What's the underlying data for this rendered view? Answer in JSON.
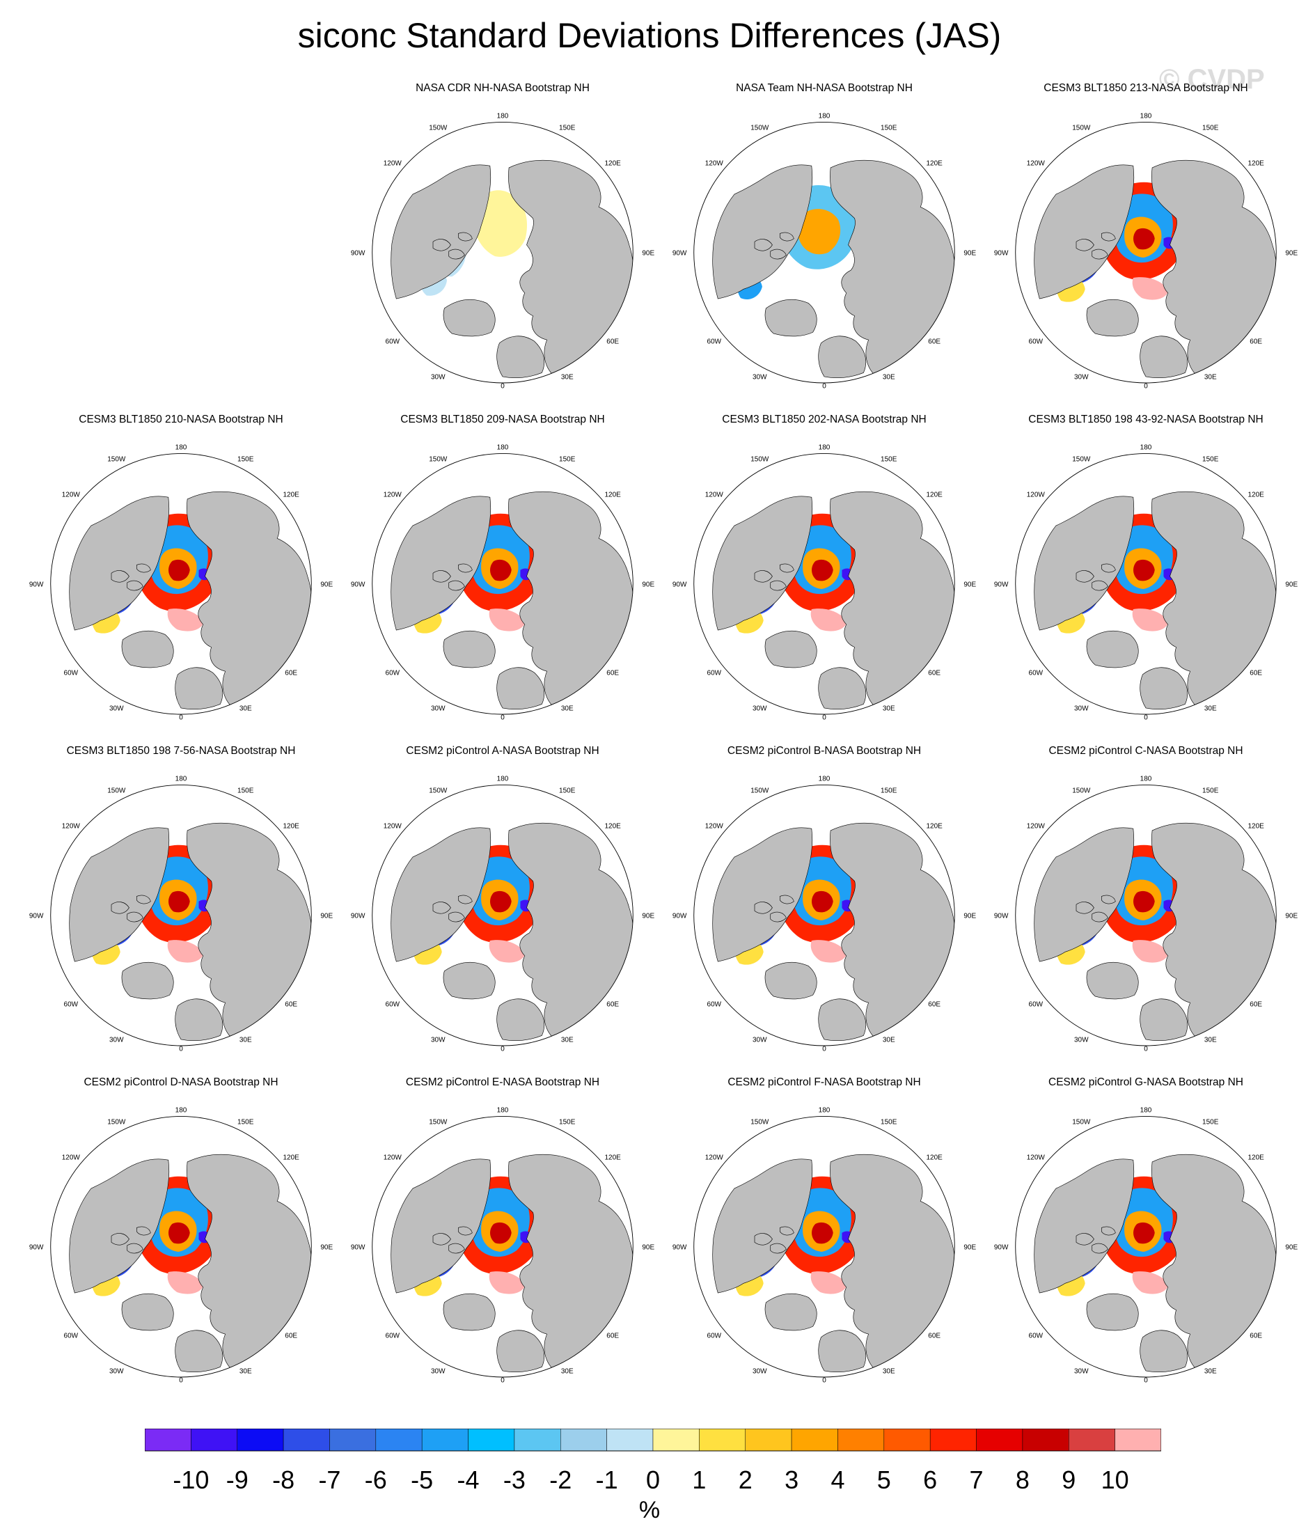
{
  "title": "siconc Standard Deviations Differences (JAS)",
  "watermark": "© CVDP",
  "panels": [
    {
      "title": "NASA CDR NH-NASA Bootstrap NH",
      "pattern": "cdr"
    },
    {
      "title": "NASA Team NH-NASA Bootstrap NH",
      "pattern": "team"
    },
    {
      "title": "CESM3 BLT1850 213-NASA Bootstrap NH",
      "pattern": "model"
    },
    {
      "title": "CESM3 BLT1850 210-NASA Bootstrap NH",
      "pattern": "model"
    },
    {
      "title": "CESM3 BLT1850 209-NASA Bootstrap NH",
      "pattern": "model"
    },
    {
      "title": "CESM3 BLT1850 202-NASA Bootstrap NH",
      "pattern": "model"
    },
    {
      "title": "CESM3 BLT1850 198 43-92-NASA Bootstrap NH",
      "pattern": "model"
    },
    {
      "title": "CESM3 BLT1850 198 7-56-NASA Bootstrap NH",
      "pattern": "model"
    },
    {
      "title": "CESM2 piControl A-NASA Bootstrap NH",
      "pattern": "model"
    },
    {
      "title": "CESM2 piControl B-NASA Bootstrap NH",
      "pattern": "model"
    },
    {
      "title": "CESM2 piControl C-NASA Bootstrap NH",
      "pattern": "model"
    },
    {
      "title": "CESM2 piControl D-NASA Bootstrap NH",
      "pattern": "model"
    },
    {
      "title": "CESM2 piControl E-NASA Bootstrap NH",
      "pattern": "model"
    },
    {
      "title": "CESM2 piControl F-NASA Bootstrap NH",
      "pattern": "model"
    },
    {
      "title": "CESM2 piControl G-NASA Bootstrap NH",
      "pattern": "model"
    }
  ],
  "map_labels": {
    "top": "180",
    "bottom": "0",
    "left": "90W",
    "right": "90E",
    "top_left_1": "150W",
    "top_right_1": "150E",
    "top_left_2": "120W",
    "top_right_2": "120E",
    "bottom_left_1": "60W",
    "bottom_right_1": "60E",
    "bottom_left_2": "30W",
    "bottom_right_2": "30E"
  },
  "colorbar": {
    "colors": [
      "#7b2bf5",
      "#3f12f5",
      "#0c0cf5",
      "#2e4ee8",
      "#3a6fe0",
      "#2b84f2",
      "#1ea0f5",
      "#00bfff",
      "#5cc6f2",
      "#9ccfec",
      "#bfe3f5",
      "#fff59a",
      "#ffe040",
      "#ffc51e",
      "#ffa500",
      "#ff8000",
      "#ff5a00",
      "#ff2400",
      "#e60000",
      "#c80000",
      "#d94040",
      "#ffb0b0"
    ],
    "tick_labels": [
      "-10",
      "-9",
      "-8",
      "-7",
      "-6",
      "-5",
      "-4",
      "-3",
      "-2",
      "-1",
      "0",
      "1",
      "2",
      "3",
      "4",
      "5",
      "6",
      "7",
      "8",
      "9",
      "10"
    ],
    "units": "%"
  },
  "map_colors": {
    "land": "#bebebe",
    "ocean": "#ffffff",
    "border": "#000000"
  }
}
